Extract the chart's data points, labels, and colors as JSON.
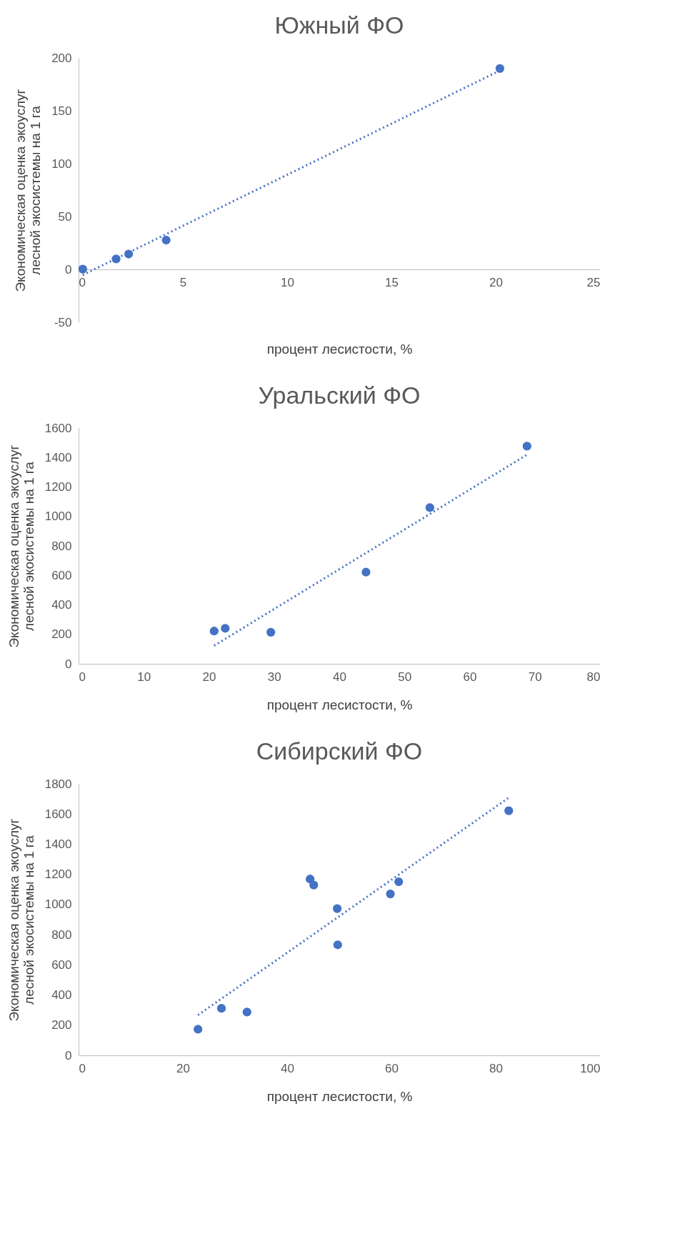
{
  "chart_data": [
    {
      "type": "scatter",
      "title": "Южный ФО",
      "xlabel": "процент лесистости, %",
      "ylabel": "Экономическая оценка экоуслуг\nлесной экосистемы на 1 га",
      "xlim": [
        0,
        25
      ],
      "xticks": [
        0,
        5,
        10,
        15,
        20,
        25
      ],
      "ylim": [
        -50,
        200
      ],
      "yticks": [
        -50,
        0,
        50,
        100,
        150,
        200
      ],
      "grid": false,
      "marker": "circle",
      "series": [
        {
          "color": "#4472c4",
          "x": [
            0.2,
            1.8,
            2.4,
            4.2,
            20.2
          ],
          "values": [
            0.3,
            9.9,
            14.5,
            27.7,
            190
          ]
        },
        {
          "type": "line",
          "color": "#4472c4",
          "line_style": "dotted",
          "marker": "none",
          "x": [
            0.2,
            20.2
          ],
          "values": [
            -5.3,
            188
          ]
        }
      ]
    },
    {
      "type": "scatter",
      "title": "Уральский ФО",
      "xlabel": "процент лесистости, %",
      "ylabel": "Экономическая оценка экоуслуг\nлесной экосистемы на 1 га",
      "xlim": [
        0,
        80
      ],
      "xticks": [
        0,
        10,
        20,
        30,
        40,
        50,
        60,
        70,
        80
      ],
      "ylim": [
        0,
        1600
      ],
      "yticks": [
        0,
        200,
        400,
        600,
        800,
        1000,
        1200,
        1400,
        1600
      ],
      "grid": false,
      "marker": "circle",
      "series": [
        {
          "color": "#4472c4",
          "x": [
            20.8,
            22.5,
            29.5,
            44.1,
            53.9,
            68.8
          ],
          "values": [
            222,
            241,
            214,
            622,
            1060,
            1477
          ]
        },
        {
          "type": "line",
          "color": "#4472c4",
          "line_style": "dotted",
          "marker": "none",
          "x": [
            20.8,
            68.8
          ],
          "values": [
            123,
            1419
          ]
        }
      ]
    },
    {
      "type": "scatter",
      "title": "Сибирский ФО",
      "xlabel": "процент лесистости, %",
      "ylabel": "Экономическая оценка экоуслуг\nлесной экосистемы на 1 га",
      "xlim": [
        0,
        100
      ],
      "xticks": [
        0,
        20,
        40,
        60,
        80,
        100
      ],
      "ylim": [
        0,
        1800
      ],
      "yticks": [
        0,
        200,
        400,
        600,
        800,
        1000,
        1200,
        1400,
        1600,
        1800
      ],
      "grid": false,
      "marker": "circle",
      "series": [
        {
          "color": "#4472c4",
          "x": [
            22.9,
            27.4,
            32.3,
            44.4,
            45.1,
            49.6,
            49.7,
            59.8,
            61.4,
            82.5
          ],
          "values": [
            173,
            312,
            287,
            1169,
            1129,
            973,
            733,
            1070,
            1151,
            1622
          ]
        },
        {
          "type": "line",
          "color": "#4472c4",
          "line_style": "dotted",
          "marker": "none",
          "x": [
            22.9,
            82.5
          ],
          "values": [
            267,
            1708
          ]
        }
      ]
    }
  ]
}
